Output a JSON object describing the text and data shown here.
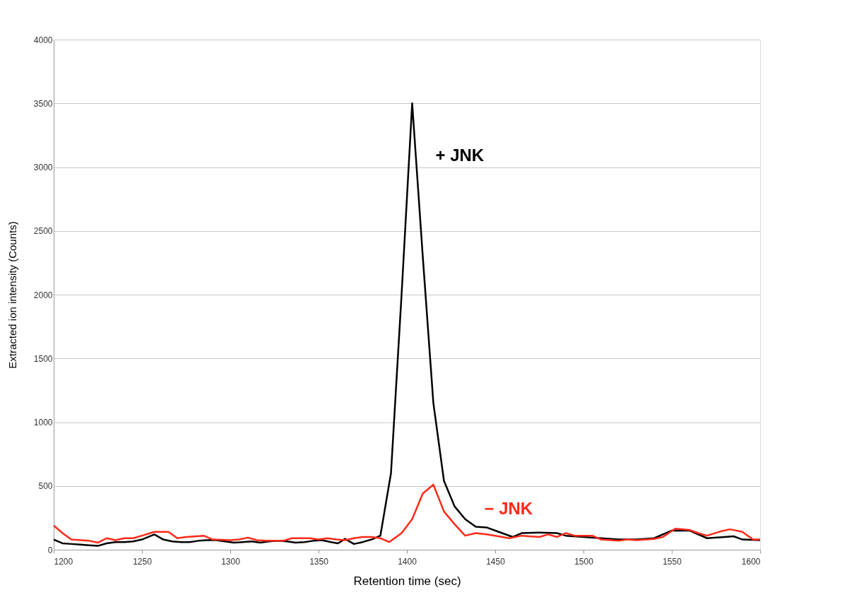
{
  "chart_data": {
    "type": "line",
    "xlabel": "Retention time (sec)",
    "ylabel": "Extracted ion intensity (Counts)",
    "xlim": [
      1200,
      1600
    ],
    "xticks": [
      {
        "value": 1200,
        "label": "1200"
      },
      {
        "value": 1250,
        "label": "1250"
      },
      {
        "value": 1300,
        "label": "1300"
      },
      {
        "value": 1350,
        "label": "1350"
      },
      {
        "value": 1400,
        "label": "1400"
      },
      {
        "value": 1450,
        "label": "1450"
      },
      {
        "value": 1500,
        "label": "1500"
      },
      {
        "value": 1550,
        "label": "1550"
      },
      {
        "value": 1600,
        "label": "1600"
      }
    ],
    "ylim": [
      0,
      4000
    ],
    "yticks": [
      {
        "value": 0,
        "label": "0"
      },
      {
        "value": 500,
        "label": "500"
      },
      {
        "value": 1000,
        "label": "1000"
      },
      {
        "value": 1500,
        "label": "1500"
      },
      {
        "value": 2000,
        "label": "2000"
      },
      {
        "value": 2500,
        "label": "2500"
      },
      {
        "value": 3000,
        "label": "3000"
      },
      {
        "value": 3500,
        "label": "3500"
      },
      {
        "value": 4000,
        "label": "4000"
      }
    ],
    "grid": "y",
    "legend": false,
    "marker": "none",
    "line_style": "solid",
    "series": [
      {
        "name": "+ JNK",
        "color": "#000000",
        "x": [
          1200,
          1205,
          1210,
          1215,
          1220,
          1225,
          1230,
          1235,
          1240,
          1245,
          1250,
          1257,
          1262,
          1267,
          1272,
          1277,
          1282,
          1287,
          1292,
          1297,
          1302,
          1307,
          1312,
          1317,
          1322,
          1327,
          1332,
          1337,
          1342,
          1347,
          1352,
          1357,
          1361,
          1365,
          1370,
          1375,
          1380,
          1385,
          1391,
          1397,
          1403,
          1409,
          1415,
          1421,
          1427,
          1433,
          1439,
          1445,
          1452,
          1460,
          1465,
          1475,
          1485,
          1490,
          1500,
          1510,
          1520,
          1530,
          1540,
          1550,
          1560,
          1570,
          1580,
          1585,
          1590,
          1600
        ],
        "values": [
          80,
          50,
          45,
          40,
          35,
          30,
          50,
          60,
          60,
          65,
          80,
          120,
          80,
          65,
          60,
          60,
          70,
          75,
          75,
          65,
          55,
          60,
          65,
          55,
          65,
          70,
          65,
          55,
          60,
          70,
          75,
          60,
          50,
          85,
          45,
          60,
          80,
          110,
          600,
          2000,
          3500,
          2300,
          1150,
          540,
          340,
          240,
          180,
          175,
          140,
          100,
          130,
          135,
          130,
          110,
          100,
          90,
          80,
          80,
          90,
          150,
          150,
          90,
          100,
          105,
          80,
          75
        ]
      },
      {
        "name": "− JNK",
        "color": "#ff2a1a",
        "x": [
          1200,
          1205,
          1210,
          1215,
          1220,
          1225,
          1230,
          1235,
          1240,
          1245,
          1250,
          1257,
          1265,
          1270,
          1275,
          1285,
          1290,
          1300,
          1305,
          1310,
          1315,
          1320,
          1330,
          1335,
          1345,
          1350,
          1355,
          1360,
          1365,
          1370,
          1375,
          1380,
          1385,
          1390,
          1397,
          1403,
          1409,
          1415,
          1421,
          1427,
          1433,
          1439,
          1445,
          1450,
          1458,
          1465,
          1475,
          1480,
          1485,
          1490,
          1495,
          1505,
          1510,
          1520,
          1525,
          1530,
          1540,
          1545,
          1552,
          1560,
          1565,
          1570,
          1578,
          1583,
          1590,
          1596,
          1600
        ],
        "values": [
          190,
          130,
          80,
          75,
          70,
          55,
          90,
          75,
          90,
          90,
          110,
          140,
          140,
          90,
          100,
          110,
          80,
          75,
          80,
          95,
          75,
          70,
          70,
          90,
          90,
          80,
          90,
          80,
          75,
          90,
          100,
          100,
          90,
          60,
          130,
          240,
          440,
          510,
          300,
          200,
          110,
          130,
          120,
          110,
          90,
          110,
          100,
          120,
          100,
          130,
          110,
          110,
          80,
          70,
          80,
          75,
          85,
          100,
          165,
          155,
          130,
          110,
          145,
          160,
          140,
          80,
          80
        ]
      }
    ]
  }
}
